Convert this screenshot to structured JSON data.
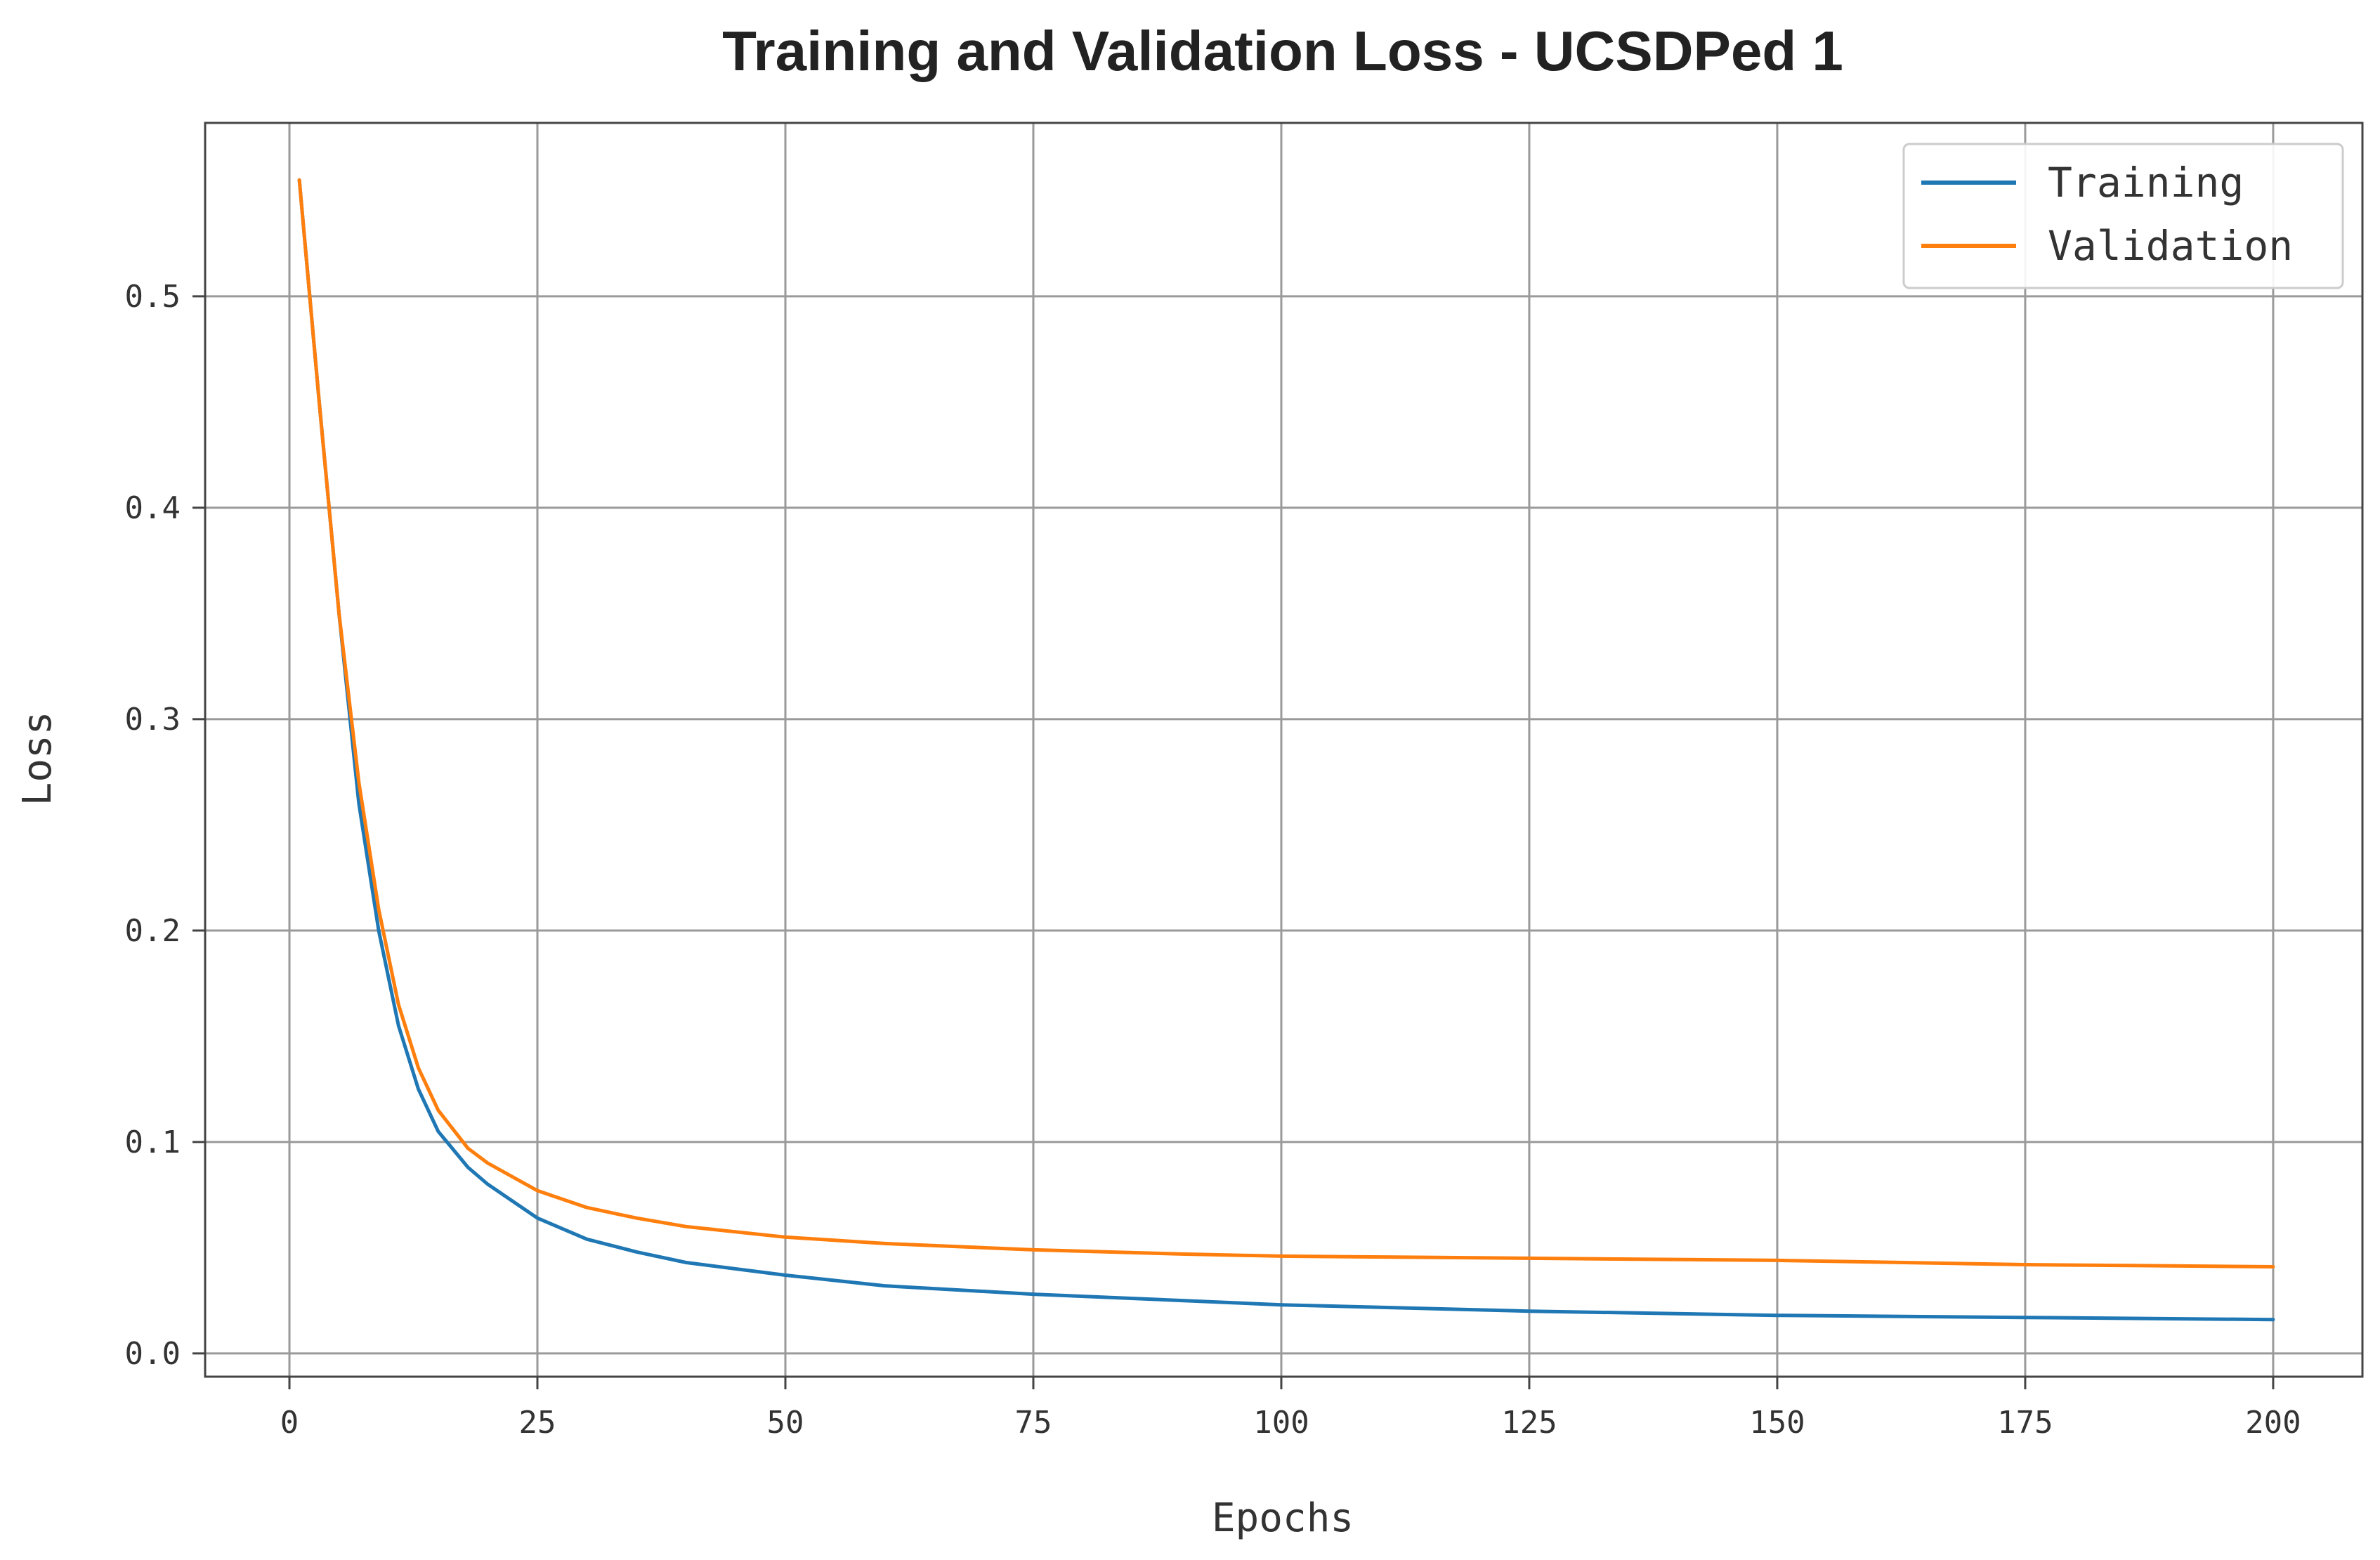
{
  "chart_data": {
    "type": "line",
    "title": "Training and Validation Loss - UCSDPed 1",
    "xlabel": "Epochs",
    "ylabel": "Loss",
    "xlim": [
      -8.5,
      209
    ],
    "ylim": [
      -0.011,
      0.582
    ],
    "xticks": [
      0,
      25,
      50,
      75,
      100,
      125,
      150,
      175,
      200
    ],
    "xtick_labels": [
      "0",
      "25",
      "50",
      "75",
      "100",
      "125",
      "150",
      "175",
      "200"
    ],
    "yticks": [
      0.0,
      0.1,
      0.2,
      0.3,
      0.4,
      0.5
    ],
    "ytick_labels": [
      "0.0",
      "0.1",
      "0.2",
      "0.3",
      "0.4",
      "0.5"
    ],
    "grid": true,
    "legend": "top-right",
    "series": [
      {
        "name": "Training",
        "color": "#1f77b4",
        "x": [
          1,
          3,
          5,
          7,
          9,
          11,
          13,
          15,
          18,
          20,
          25,
          30,
          35,
          40,
          50,
          60,
          75,
          90,
          100,
          125,
          150,
          175,
          200
        ],
        "y": [
          0.555,
          0.45,
          0.35,
          0.26,
          0.2,
          0.155,
          0.125,
          0.105,
          0.088,
          0.08,
          0.064,
          0.054,
          0.048,
          0.043,
          0.037,
          0.032,
          0.028,
          0.025,
          0.023,
          0.02,
          0.018,
          0.017,
          0.016
        ]
      },
      {
        "name": "Validation",
        "color": "#ff7f0e",
        "x": [
          1,
          3,
          5,
          7,
          9,
          11,
          13,
          15,
          18,
          20,
          25,
          30,
          35,
          40,
          50,
          60,
          75,
          90,
          100,
          125,
          150,
          175,
          200
        ],
        "y": [
          0.555,
          0.45,
          0.35,
          0.27,
          0.21,
          0.165,
          0.135,
          0.115,
          0.097,
          0.09,
          0.077,
          0.069,
          0.064,
          0.06,
          0.055,
          0.052,
          0.049,
          0.047,
          0.046,
          0.045,
          0.044,
          0.042,
          0.041
        ]
      }
    ]
  }
}
